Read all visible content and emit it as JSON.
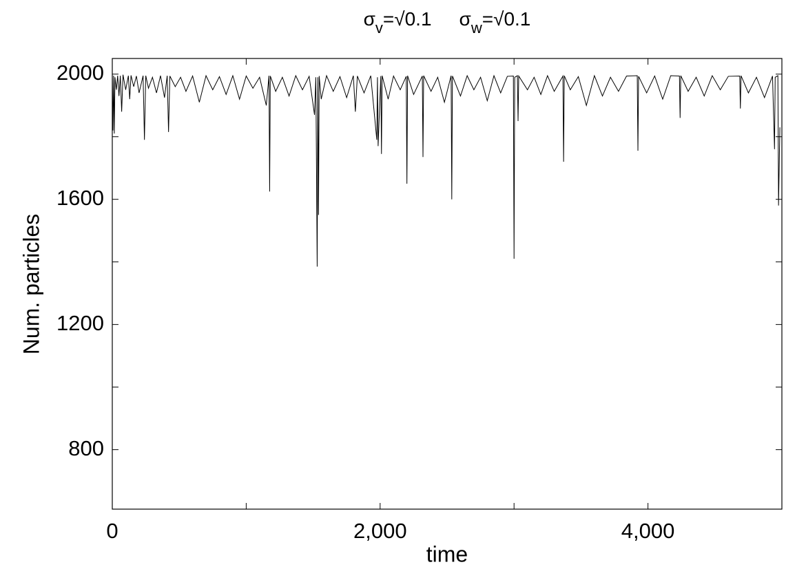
{
  "chart_data": {
    "type": "line",
    "title": [
      {
        "symbol": "σ",
        "subscript": "v",
        "text": "=√0.1"
      },
      {
        "symbol": "σ",
        "subscript": "w",
        "text": "=√0.1"
      }
    ],
    "xlabel": "time",
    "ylabel": "Num. particles",
    "xlim": [
      0,
      5000
    ],
    "ylim": [
      610,
      2050
    ],
    "xticks": [
      0,
      {
        "value": 2000,
        "label": "2,000"
      },
      {
        "value": 4000,
        "label": "4,000"
      }
    ],
    "xminorticks": [
      1000,
      3000
    ],
    "yticks": [
      800,
      1200,
      1600,
      2000
    ],
    "yminorticks": [
      1000,
      1400,
      1800
    ],
    "grid": false,
    "series": [
      {
        "color": "#000000",
        "x": [
          0,
          5,
          10,
          15,
          20,
          30,
          40,
          50,
          60,
          70,
          80,
          100,
          120,
          130,
          140,
          160,
          180,
          200,
          230,
          240,
          250,
          270,
          300,
          330,
          360,
          390,
          410,
          420,
          430,
          470,
          510,
          550,
          600,
          650,
          700,
          750,
          800,
          850,
          900,
          950,
          1000,
          1050,
          1100,
          1150,
          1170,
          1175,
          1180,
          1220,
          1270,
          1320,
          1370,
          1420,
          1470,
          1510,
          1520,
          1530,
          1535,
          1540,
          1545,
          1560,
          1600,
          1650,
          1700,
          1750,
          1800,
          1815,
          1830,
          1880,
          1930,
          1975,
          1980,
          1985,
          2005,
          2010,
          2015,
          2060,
          2100,
          2150,
          2195,
          2200,
          2205,
          2250,
          2315,
          2320,
          2325,
          2380,
          2430,
          2480,
          2530,
          2535,
          2540,
          2600,
          2650,
          2700,
          2750,
          2800,
          2850,
          2900,
          2950,
          2995,
          3000,
          3005,
          3025,
          3030,
          3035,
          3100,
          3150,
          3200,
          3250,
          3300,
          3365,
          3370,
          3375,
          3420,
          3480,
          3540,
          3600,
          3660,
          3720,
          3780,
          3840,
          3920,
          3925,
          3930,
          3990,
          4050,
          4110,
          4170,
          4235,
          4240,
          4245,
          4300,
          4360,
          4420,
          4480,
          4540,
          4600,
          4685,
          4690,
          4695,
          4750,
          4810,
          4870,
          4930,
          4945,
          4950,
          4970,
          4975,
          4985
        ],
        "values": [
          1990,
          1820,
          1995,
          1810,
          1990,
          1950,
          1995,
          1930,
          1995,
          1880,
          1998,
          1950,
          1995,
          1920,
          1996,
          1960,
          1994,
          1940,
          1995,
          1790,
          1995,
          1955,
          1990,
          1940,
          1995,
          1925,
          1995,
          1815,
          1994,
          1960,
          1990,
          1945,
          1994,
          1910,
          1995,
          1950,
          1992,
          1935,
          1995,
          1920,
          1994,
          1955,
          1990,
          1900,
          1995,
          1625,
          1994,
          1945,
          1990,
          1930,
          1995,
          1950,
          1993,
          1870,
          1990,
          1385,
          1990,
          1550,
          1994,
          1920,
          1995,
          1945,
          1992,
          1925,
          1995,
          1880,
          1994,
          1940,
          1995,
          1790,
          1990,
          1770,
          1994,
          1745,
          1995,
          1920,
          1994,
          1950,
          1993,
          1650,
          1995,
          1935,
          1994,
          1735,
          1995,
          1945,
          1990,
          1910,
          1995,
          1600,
          1994,
          1930,
          1995,
          1950,
          1990,
          1915,
          1995,
          1940,
          1993,
          1994,
          1410,
          1990,
          1995,
          1850,
          1994,
          1950,
          1990,
          1935,
          1995,
          1945,
          1994,
          1720,
          1995,
          1950,
          1992,
          1900,
          1995,
          1930,
          1990,
          1945,
          1994,
          1995,
          1755,
          1993,
          1940,
          1994,
          1920,
          1995,
          1994,
          1860,
          1995,
          1945,
          1990,
          1930,
          1995,
          1950,
          1993,
          1994,
          1890,
          1995,
          1940,
          1990,
          1925,
          1994,
          1760,
          1990,
          1995,
          1580,
          1830
        ]
      }
    ]
  }
}
